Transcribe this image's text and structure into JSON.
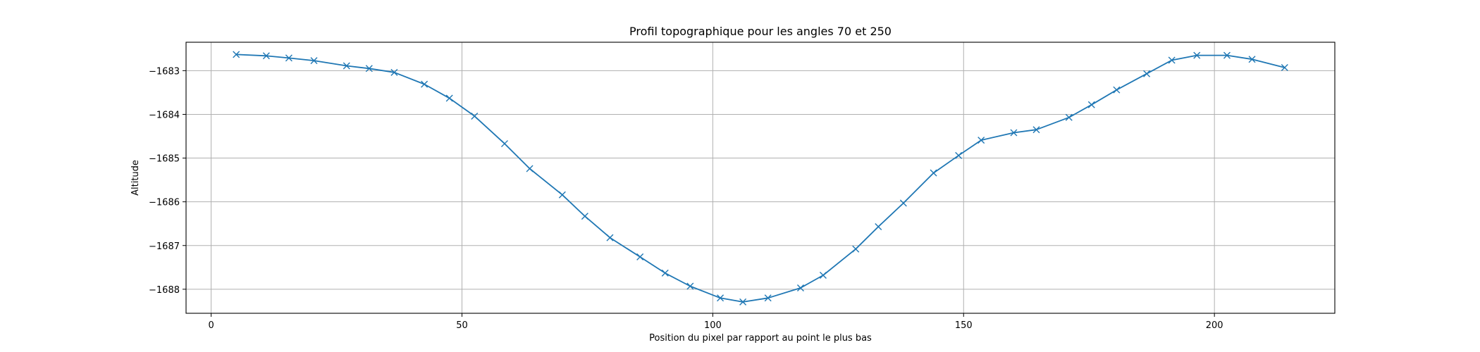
{
  "chart_data": {
    "type": "line",
    "title": "Profil topographique pour les angles 70 et 250",
    "xlabel": "Position du pixel par rapport au point le plus bas",
    "ylabel": "Altitude",
    "xlim": [
      -5,
      224
    ],
    "ylim": [
      -1688.55,
      -1682.35
    ],
    "xticks": [
      0,
      50,
      100,
      150,
      200
    ],
    "yticks": [
      -1688,
      -1687,
      -1686,
      -1685,
      -1684,
      -1683
    ],
    "xtick_labels": [
      "0",
      "50",
      "100",
      "150",
      "200"
    ],
    "ytick_labels": [
      "−1688",
      "−1687",
      "−1686",
      "−1685",
      "−1684",
      "−1683"
    ],
    "grid": true,
    "line_color": "#1f77b4",
    "marker": "x",
    "series": [
      {
        "x": [
          5,
          11,
          15.5,
          20.5,
          27,
          31.5,
          36.5,
          42.5,
          47.5,
          52.5,
          58.5,
          63.5,
          70,
          74.5,
          79.5,
          85.5,
          90.5,
          95.5,
          101.5,
          106,
          111,
          117.5,
          122,
          128.5,
          133,
          138,
          144,
          149,
          153.5,
          160,
          164.5,
          171,
          175.5,
          180.5,
          186.5,
          191.5,
          196.5,
          202.5,
          207.5,
          214
        ],
        "y": [
          -1682.63,
          -1682.66,
          -1682.71,
          -1682.77,
          -1682.89,
          -1682.95,
          -1683.04,
          -1683.31,
          -1683.63,
          -1684.04,
          -1684.67,
          -1685.24,
          -1685.84,
          -1686.33,
          -1686.82,
          -1687.26,
          -1687.63,
          -1687.93,
          -1688.2,
          -1688.29,
          -1688.2,
          -1687.97,
          -1687.68,
          -1687.08,
          -1686.57,
          -1686.03,
          -1685.34,
          -1684.94,
          -1684.59,
          -1684.42,
          -1684.35,
          -1684.07,
          -1683.78,
          -1683.44,
          -1683.07,
          -1682.76,
          -1682.65,
          -1682.65,
          -1682.74,
          -1682.93
        ]
      }
    ]
  }
}
